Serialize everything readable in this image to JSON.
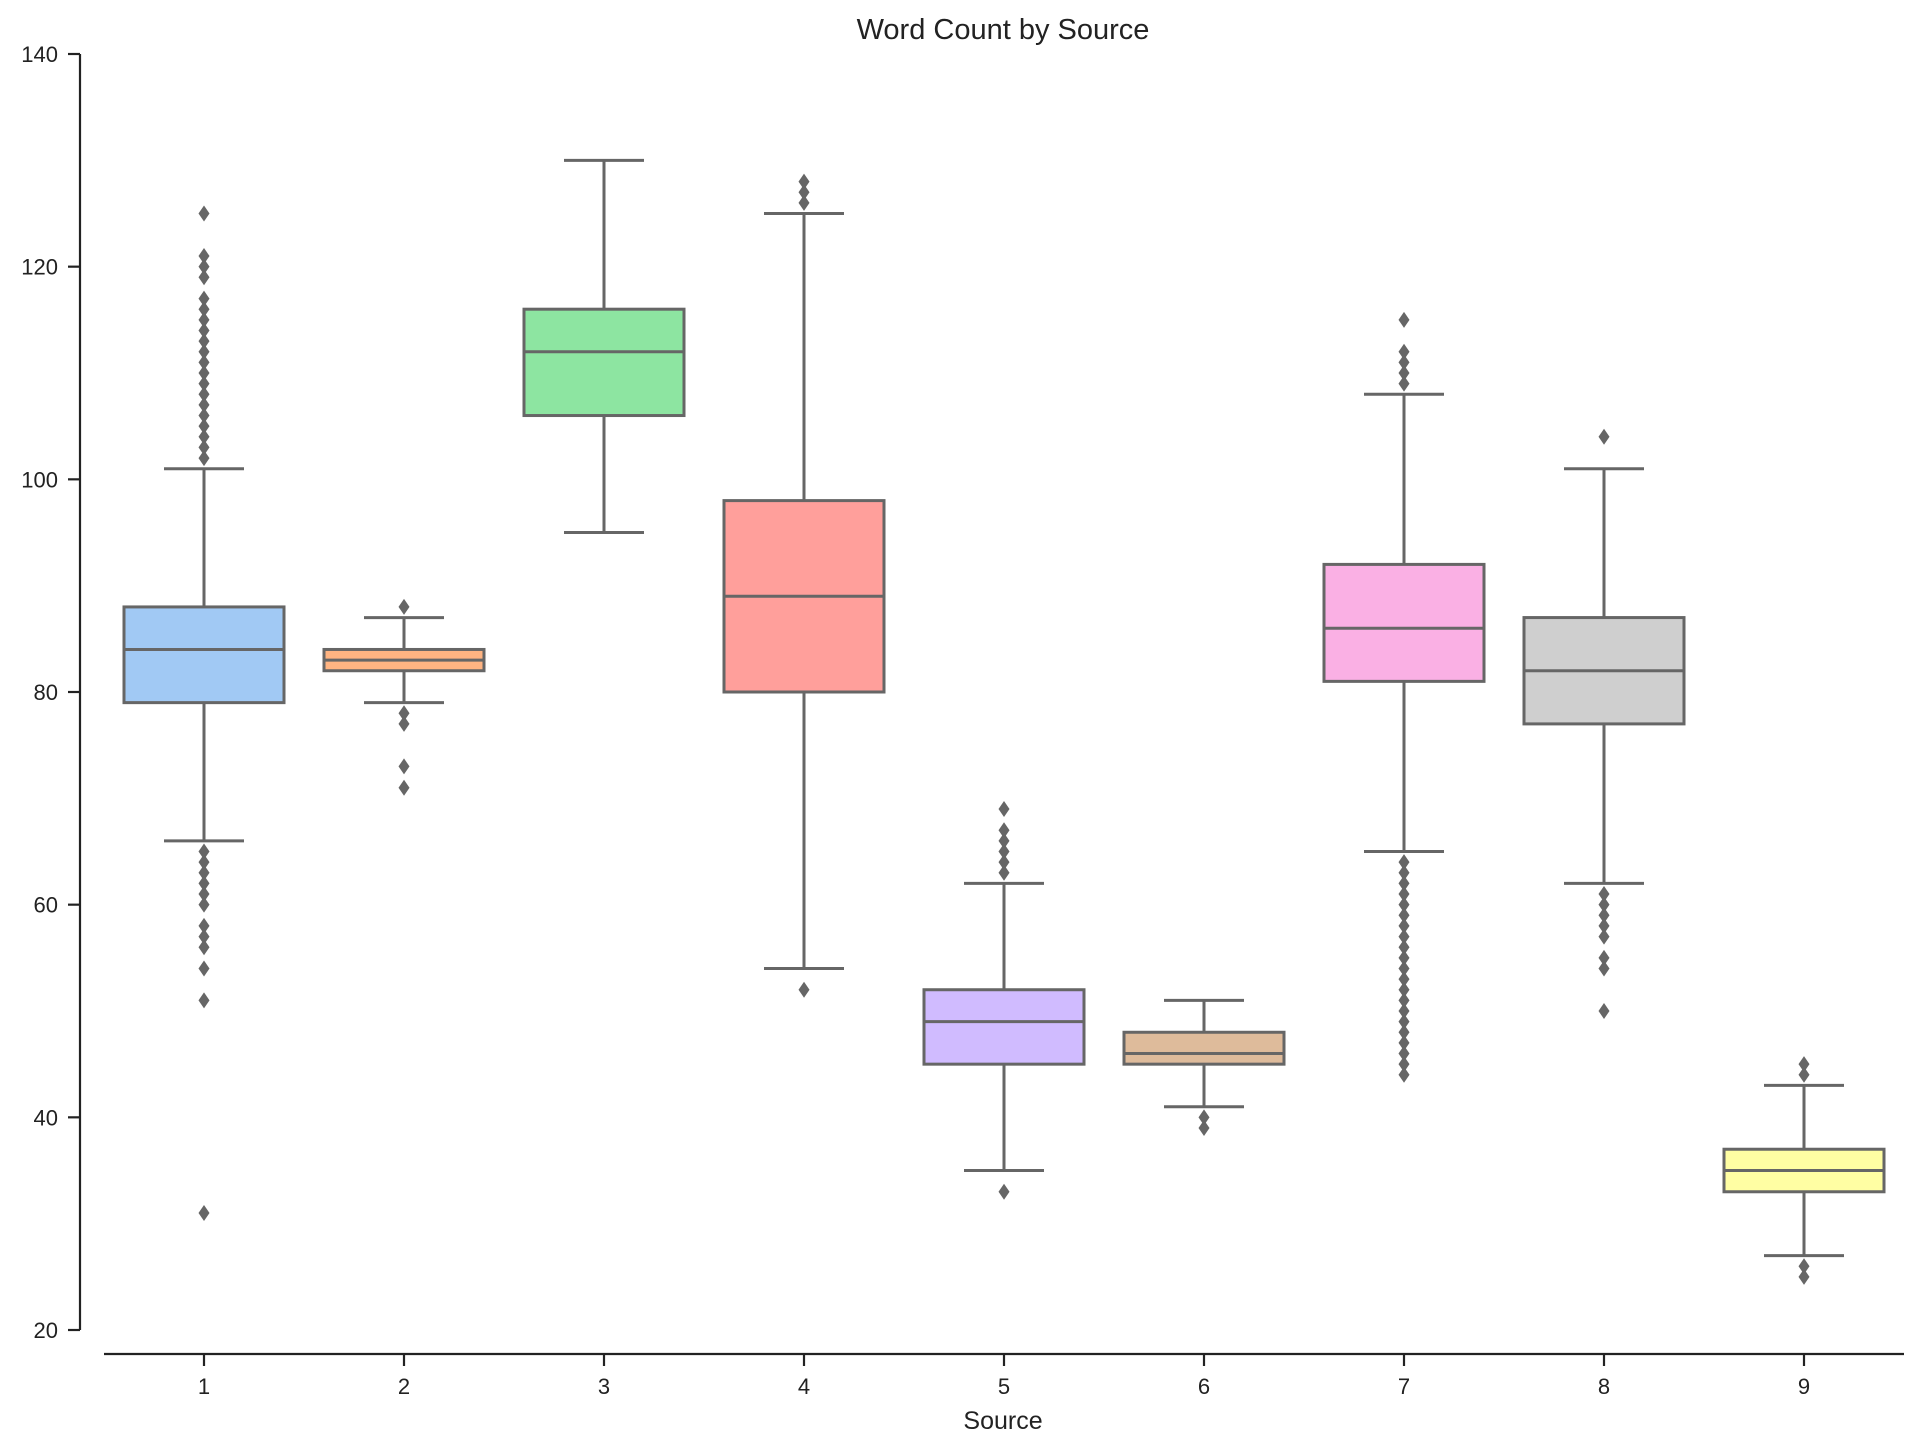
{
  "chart_data": {
    "type": "boxplot",
    "title": "Word Count by Source",
    "xlabel": "Source",
    "ylabel": "",
    "ylim": [
      20,
      140
    ],
    "yticks": [
      20,
      40,
      60,
      80,
      100,
      120,
      140
    ],
    "grid": false,
    "categories": [
      "1",
      "2",
      "3",
      "4",
      "5",
      "6",
      "7",
      "8",
      "9"
    ],
    "line_color": "#666666",
    "boxes": [
      {
        "category": "1",
        "color": "#a1c9f4",
        "whisker_low": 66,
        "q1": 79,
        "median": 84,
        "q3": 88,
        "whisker_high": 101,
        "outliers": [
          31,
          51,
          54,
          56,
          57,
          58,
          60,
          61,
          62,
          63,
          64,
          65,
          102,
          103,
          104,
          105,
          106,
          107,
          108,
          109,
          110,
          111,
          112,
          113,
          114,
          115,
          116,
          117,
          119,
          120,
          121,
          125
        ]
      },
      {
        "category": "2",
        "color": "#ffb482",
        "whisker_low": 79,
        "q1": 82,
        "median": 83,
        "q3": 84,
        "whisker_high": 87,
        "outliers": [
          71,
          73,
          77,
          78,
          88
        ]
      },
      {
        "category": "3",
        "color": "#8de5a1",
        "whisker_low": 95,
        "q1": 106,
        "median": 112,
        "q3": 116,
        "whisker_high": 130,
        "outliers": []
      },
      {
        "category": "4",
        "color": "#ff9f9b",
        "whisker_low": 54,
        "q1": 80,
        "median": 89,
        "q3": 98,
        "whisker_high": 125,
        "outliers": [
          52,
          126,
          127,
          128
        ]
      },
      {
        "category": "5",
        "color": "#d0bbff",
        "whisker_low": 35,
        "q1": 45,
        "median": 49,
        "q3": 52,
        "whisker_high": 62,
        "outliers": [
          33,
          63,
          64,
          65,
          66,
          67,
          69
        ]
      },
      {
        "category": "6",
        "color": "#debb9b",
        "whisker_low": 41,
        "q1": 45,
        "median": 46,
        "q3": 48,
        "whisker_high": 51,
        "outliers": [
          39,
          40
        ]
      },
      {
        "category": "7",
        "color": "#fab0e4",
        "whisker_low": 65,
        "q1": 81,
        "median": 86,
        "q3": 92,
        "whisker_high": 108,
        "outliers": [
          44,
          45,
          46,
          47,
          48,
          49,
          50,
          51,
          52,
          53,
          54,
          55,
          56,
          57,
          58,
          59,
          60,
          61,
          62,
          63,
          64,
          109,
          110,
          111,
          112,
          115
        ]
      },
      {
        "category": "8",
        "color": "#cfcfcf",
        "whisker_low": 62,
        "q1": 77,
        "median": 82,
        "q3": 87,
        "whisker_high": 101,
        "outliers": [
          50,
          54,
          55,
          57,
          58,
          59,
          60,
          61,
          104
        ]
      },
      {
        "category": "9",
        "color": "#fffea3",
        "whisker_low": 27,
        "q1": 33,
        "median": 35,
        "q3": 37,
        "whisker_high": 43,
        "outliers": [
          25,
          26,
          44,
          45
        ]
      }
    ]
  }
}
